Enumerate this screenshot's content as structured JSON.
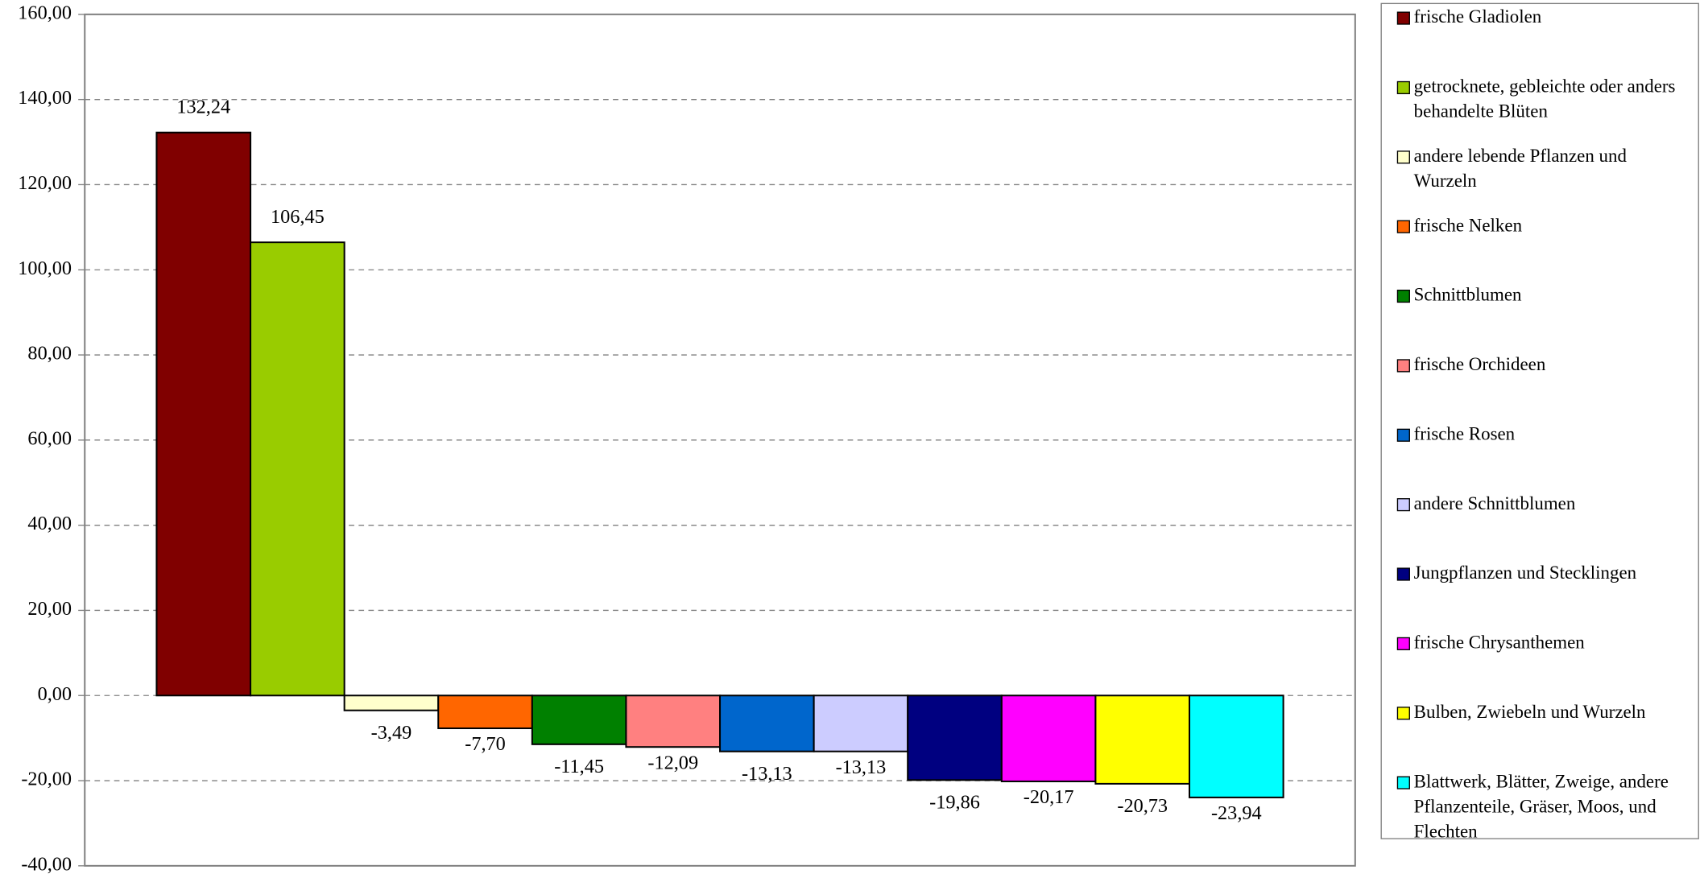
{
  "chart_data": {
    "type": "bar",
    "categories": [
      "frische Gladiolen",
      "getrocknete, gebleichte oder anders behandelte Blüten",
      "andere lebende Pflanzen und Wurzeln",
      "frische Nelken",
      "Schnittblumen",
      "frische Orchideen",
      "frische Rosen",
      "andere Schnittblumen",
      "Jungpflanzen und Stecklingen",
      "frische Chrysanthemen",
      "Bulben, Zwiebeln und Wurzeln",
      "Blattwerk, Blätter, Zweige, andere Pflanzenteile, Gräser, Moos, und Flechten"
    ],
    "values": [
      132.24,
      106.45,
      -3.49,
      -7.7,
      -11.45,
      -12.09,
      -13.13,
      -13.13,
      -19.86,
      -20.17,
      -20.73,
      -23.94
    ],
    "value_labels": [
      "132,24",
      "106,45",
      "-3,49",
      "-7,70",
      "-11,45",
      "-12,09",
      "-13,13",
      "-13,13",
      "-19,86",
      "-20,17",
      "-20,73",
      "-23,94"
    ],
    "colors": [
      "#800000",
      "#99cc00",
      "#ffffcc",
      "#ff6600",
      "#008000",
      "#ff8080",
      "#0066cc",
      "#ccccff",
      "#000080",
      "#ff00ff",
      "#ffff00",
      "#00ffff"
    ],
    "ylim": [
      -40,
      160
    ],
    "yticks": [
      {
        "value": -40,
        "label": "-40,00"
      },
      {
        "value": -20,
        "label": "-20,00"
      },
      {
        "value": 0,
        "label": "0,00"
      },
      {
        "value": 20,
        "label": "20,00"
      },
      {
        "value": 40,
        "label": "40,00"
      },
      {
        "value": 60,
        "label": "60,00"
      },
      {
        "value": 80,
        "label": "80,00"
      },
      {
        "value": 100,
        "label": "100,00"
      },
      {
        "value": 120,
        "label": "120,00"
      },
      {
        "value": 140,
        "label": "140,00"
      },
      {
        "value": 160,
        "label": "160,00"
      }
    ],
    "grid": true,
    "legend": "right"
  }
}
